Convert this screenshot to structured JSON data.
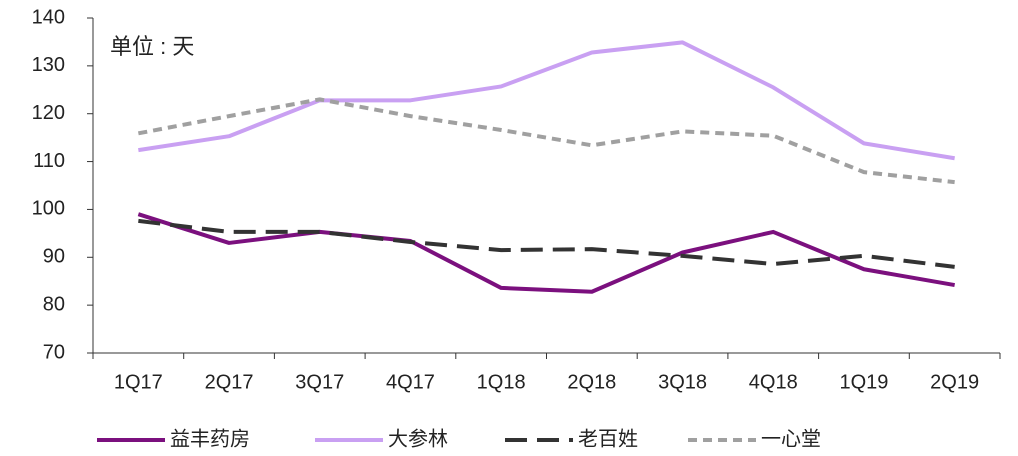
{
  "chart_data": {
    "type": "line",
    "annotation": "单位 : 天",
    "categories": [
      "1Q17",
      "2Q17",
      "3Q17",
      "4Q17",
      "1Q18",
      "2Q18",
      "3Q18",
      "4Q18",
      "1Q19",
      "2Q19"
    ],
    "series": [
      {
        "name": "益丰药房",
        "color": "#7b107e",
        "line_style": "solid",
        "values": [
          99,
          93,
          95.3,
          93.4,
          83.6,
          82.8,
          91,
          95.3,
          87.5,
          84.2
        ]
      },
      {
        "name": "大参林",
        "color": "#c9a0f2",
        "line_style": "solid",
        "values": [
          112.4,
          115.3,
          122.8,
          122.8,
          125.7,
          132.8,
          134.9,
          125.5,
          113.8,
          110.7
        ]
      },
      {
        "name": "老百姓",
        "color": "#333333",
        "line_style": "dashed",
        "values": [
          97.6,
          95.3,
          95.3,
          93.2,
          91.5,
          91.7,
          90.3,
          88.6,
          90.3,
          88
        ]
      },
      {
        "name": "一心堂",
        "color": "#a0a0a0",
        "line_style": "dotted",
        "values": [
          115.9,
          119.5,
          123,
          119.5,
          116.6,
          113.4,
          116.3,
          115.4,
          107.8,
          105.7
        ]
      }
    ],
    "ylim": [
      70,
      140
    ],
    "yticks": [
      70,
      80,
      90,
      100,
      110,
      120,
      130,
      140
    ],
    "legend": "bottom"
  }
}
